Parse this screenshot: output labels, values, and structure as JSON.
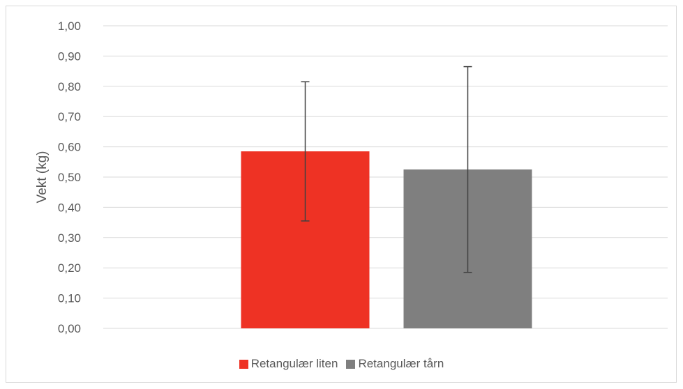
{
  "chart_data": {
    "type": "bar",
    "categories": [
      "Retangulær liten",
      "Retangulær tårn"
    ],
    "values": [
      0.585,
      0.525
    ],
    "error_bars": [
      {
        "low": 0.355,
        "high": 0.815
      },
      {
        "low": 0.185,
        "high": 0.865
      }
    ],
    "colors": [
      "#ee3224",
      "#7f7f7f"
    ],
    "ylabel": "Vekt (kg)",
    "ylim": [
      0,
      1.0
    ],
    "yticks": [
      "0,00",
      "0,10",
      "0,20",
      "0,30",
      "0,40",
      "0,50",
      "0,60",
      "0,70",
      "0,80",
      "0,90",
      "1,00"
    ],
    "grid": true,
    "legend_position": "bottom",
    "legend": [
      {
        "label": "Retangulær liten",
        "color": "#ee3224"
      },
      {
        "label": "Retangulær tårn",
        "color": "#7f7f7f"
      }
    ]
  }
}
